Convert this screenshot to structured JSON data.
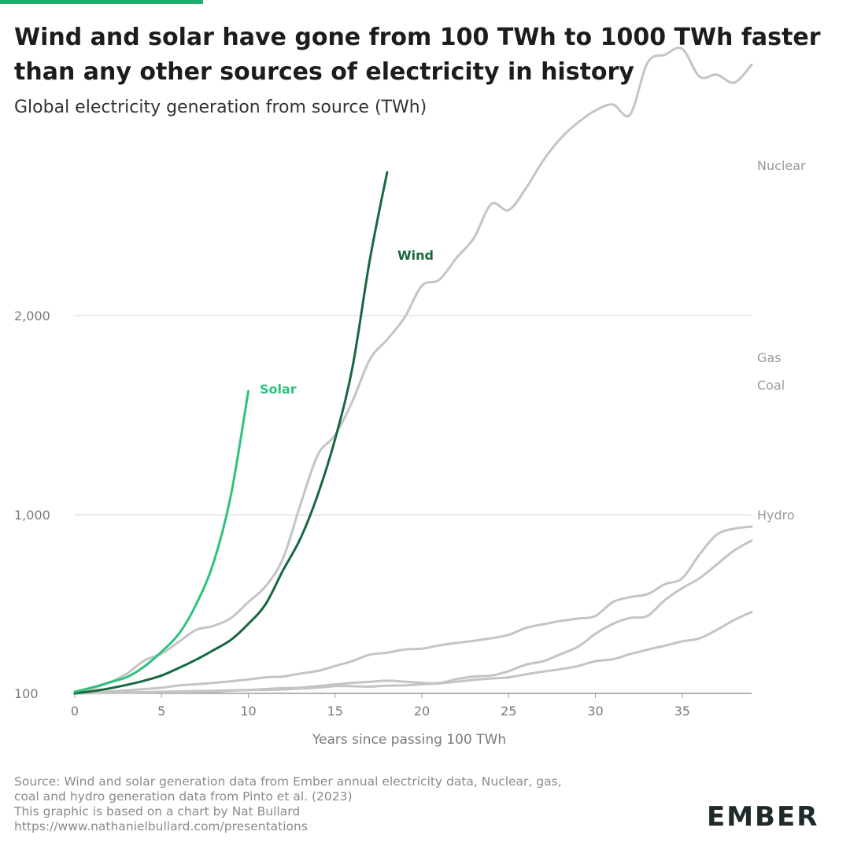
{
  "header": {
    "title": "Wind and solar have gone from 100 TWh to 1000 TWh faster than any other sources of electricity in history",
    "subtitle": "Global electricity generation from source (TWh)"
  },
  "footer": {
    "source_lines": [
      "Source: Wind and solar generation data from Ember annual electricity data, Nuclear, gas,",
      "coal and hydro generation data from Pinto et al. (2023)",
      "This graphic is based on a chart by Nat Bullard",
      "https://www.nathanielbullard.com/presentations"
    ],
    "logo_text": "EMBER"
  },
  "colors": {
    "accent": "#1fae6e",
    "solar": "#2ec27e",
    "wind": "#17683f",
    "other": "#c4c4c4",
    "grid": "#d4d4d4",
    "axis": "#9a9a9a"
  },
  "chart_data": {
    "type": "line",
    "title": "Wind and solar have gone from 100 TWh to 1000 TWh faster than any other sources of electricity in history",
    "subtitle": "Global electricity generation from source (TWh)",
    "xlabel": "Years since passing 100 TWh",
    "ylabel": "",
    "x_ticks": [
      0,
      5,
      10,
      15,
      20,
      25,
      30,
      35
    ],
    "y_ticks": [
      100,
      1000,
      2000
    ],
    "y_tick_labels": [
      "100",
      "1,000",
      "2,000"
    ],
    "xlim": [
      0,
      39
    ],
    "y_scale": "log",
    "ylim": [
      100,
      3000
    ],
    "grid": "horizontal",
    "legend": "direct labels at line ends",
    "series": [
      {
        "name": "Nuclear",
        "color": "#c4c4c4",
        "x": [
          0,
          1,
          2,
          3,
          4,
          5,
          6,
          7,
          8,
          9,
          10,
          11,
          12,
          13,
          14,
          15,
          16,
          17,
          18,
          19,
          20,
          21,
          22,
          23,
          24,
          25,
          26,
          27,
          28,
          29,
          30,
          31,
          32,
          33,
          34,
          35,
          36,
          37,
          38,
          39
        ],
        "y": [
          100,
          125,
          155,
          200,
          265,
          300,
          360,
          420,
          440,
          480,
          560,
          640,
          780,
          1050,
          1300,
          1400,
          1570,
          1780,
          1880,
          1990,
          2150,
          2180,
          2290,
          2390,
          2560,
          2530,
          2640,
          2780,
          2890,
          2970,
          3030,
          3060,
          3010,
          3270,
          3310,
          3340,
          3200,
          3210,
          3170,
          3260
        ]
      },
      {
        "name": "Gas",
        "color": "#c4c4c4",
        "x": [
          0,
          1,
          2,
          3,
          4,
          5,
          6,
          7,
          8,
          9,
          10,
          11,
          12,
          13,
          14,
          15,
          16,
          17,
          18,
          19,
          20,
          21,
          22,
          23,
          24,
          25,
          26,
          27,
          28,
          29,
          30,
          31,
          32,
          33,
          34,
          35,
          36,
          37,
          38,
          39
        ],
        "y": [
          100,
          104,
          110,
          115,
          122,
          128,
          140,
          146,
          153,
          161,
          170,
          181,
          185,
          200,
          213,
          238,
          263,
          295,
          305,
          321,
          325,
          342,
          354,
          365,
          378,
          395,
          430,
          448,
          465,
          477,
          490,
          560,
          585,
          600,
          650,
          680,
          800,
          900,
          930,
          940
        ]
      },
      {
        "name": "Coal",
        "color": "#c4c4c4",
        "x": [
          0,
          1,
          2,
          3,
          4,
          5,
          6,
          7,
          8,
          9,
          10,
          11,
          12,
          13,
          14,
          15,
          16,
          17,
          18,
          19,
          20,
          21,
          22,
          23,
          24,
          25,
          26,
          27,
          28,
          29,
          30,
          31,
          32,
          33,
          34,
          35,
          36,
          37,
          38,
          39
        ],
        "y": [
          100,
          101,
          103,
          104,
          106,
          108,
          110,
          112,
          113,
          115,
          117,
          122,
          126,
          129,
          137,
          145,
          153,
          158,
          164,
          159,
          153,
          152,
          172,
          185,
          190,
          212,
          245,
          262,
          298,
          335,
          400,
          450,
          480,
          490,
          570,
          630,
          680,
          750,
          820,
          870
        ]
      },
      {
        "name": "Hydro",
        "color": "#c4c4c4",
        "x": [
          0,
          1,
          2,
          3,
          4,
          5,
          6,
          7,
          8,
          9,
          10,
          11,
          12,
          13,
          14,
          15,
          16,
          17,
          18,
          19,
          20,
          21,
          22,
          23,
          24,
          25,
          26,
          27,
          28,
          29,
          30,
          31,
          32,
          33,
          34,
          35,
          36,
          37,
          38,
          39
        ],
        "y": [
          100,
          102,
          103,
          104,
          105,
          106,
          106,
          107,
          109,
          114,
          117,
          117,
          120,
          124,
          129,
          137,
          136,
          134,
          139,
          140,
          146,
          150,
          159,
          168,
          175,
          181,
          196,
          210,
          222,
          238,
          262,
          272,
          298,
          320,
          340,
          362,
          377,
          420,
          470,
          510
        ]
      },
      {
        "name": "Wind",
        "color": "#17683f",
        "x": [
          0,
          1,
          2,
          3,
          4,
          5,
          6,
          7,
          8,
          9,
          10,
          11,
          12,
          13,
          14,
          15,
          16,
          17,
          18
        ],
        "y": [
          100,
          111,
          125,
          143,
          164,
          190,
          228,
          270,
          318,
          370,
          450,
          550,
          720,
          880,
          1100,
          1380,
          1740,
          2280,
          2720
        ]
      },
      {
        "name": "Solar",
        "color": "#2ec27e",
        "x": [
          0,
          1,
          2,
          3,
          4,
          5,
          6,
          7,
          8,
          9,
          10
        ],
        "y": [
          108,
          130,
          155,
          182,
          235,
          310,
          400,
          550,
          760,
          1100,
          1620
        ]
      }
    ]
  }
}
